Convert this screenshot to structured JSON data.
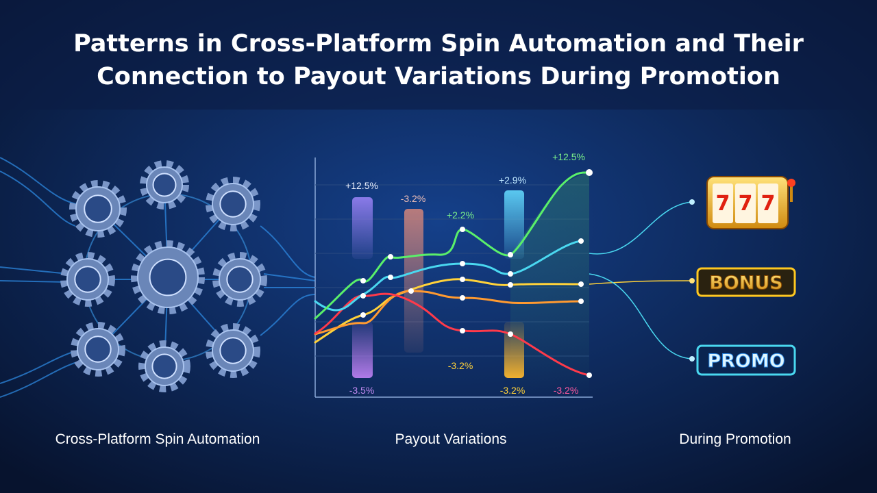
{
  "header": {
    "title_line1": "Patterns in Cross-Platform Spin Automation and Their",
    "title_line2": "Connection to Payout Variations During Promotion"
  },
  "sections": {
    "left": "Cross-Platform Spin Automation",
    "middle": "Payout Variations",
    "right": "During Promotion"
  },
  "chart_annotations": [
    "+12.5%",
    "-3.2%",
    "+2.2%",
    "+2.9%",
    "+12.5%",
    "-3.2%",
    "-3.5%",
    "-3.2%",
    "-3.2%"
  ],
  "slot_machine": {
    "reels": [
      "7",
      "7",
      "7"
    ]
  },
  "badges": [
    "BONUS",
    "PROMO"
  ]
}
